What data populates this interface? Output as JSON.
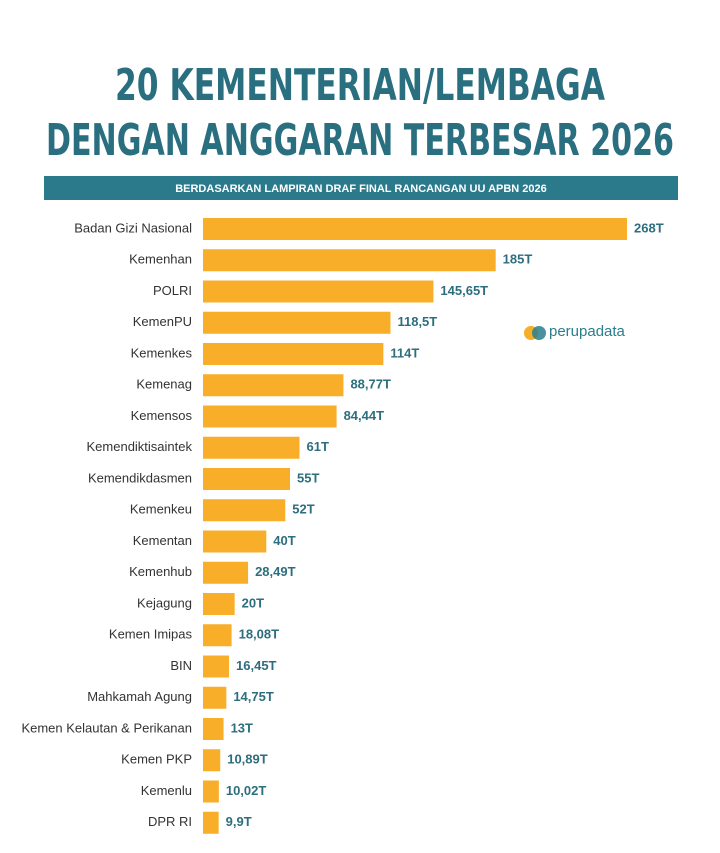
{
  "chart_data": {
    "type": "bar",
    "orientation": "horizontal",
    "title": [
      "20 KEMENTERIAN/LEMBAGA",
      "DENGAN ANGGARAN TERBESAR 2026"
    ],
    "subtitle": "BERDASARKAN LAMPIRAN DRAF FINAL RANCANGAN UU APBN 2026",
    "source": "perupadata",
    "categories": [
      "Badan Gizi Nasional",
      "Kemenhan",
      "POLRI",
      "KemenPU",
      "Kemenkes",
      "Kemenag",
      "Kemensos",
      "Kemendiktisaintek",
      "Kemendikdasmen",
      "Kemenkeu",
      "Kementan",
      "Kemenhub",
      "Kejagung",
      "Kemen Imipas",
      "BIN",
      "Mahkamah Agung",
      "Kemen Kelautan & Perikanan",
      "Kemen PKP",
      "Kemenlu",
      "DPR RI"
    ],
    "values": [
      268,
      185,
      145.65,
      118.5,
      114,
      88.77,
      84.44,
      61,
      55,
      52,
      40,
      28.49,
      20,
      18.08,
      16.45,
      14.75,
      13,
      10.89,
      10.02,
      9.9
    ],
    "value_labels": [
      "268T",
      "185T",
      "145,65T",
      "118,5T",
      "114T",
      "88,77T",
      "84,44T",
      "61T",
      "55T",
      "52T",
      "40T",
      "28,49T",
      "20T",
      "18,08T",
      "16,45T",
      "14,75T",
      "13T",
      "10,89T",
      "10,02T",
      "9,9T"
    ],
    "color": "#f8ae28"
  }
}
